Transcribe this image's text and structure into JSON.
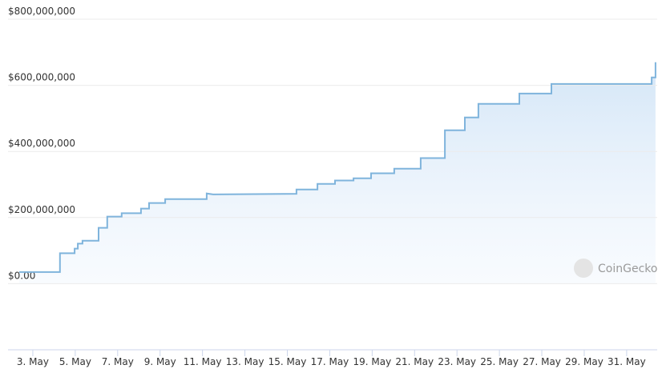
{
  "chart_data": {
    "type": "area",
    "x": [
      2.36,
      4.28,
      4.28,
      4.97,
      4.97,
      5.12,
      5.12,
      5.34,
      5.34,
      6.1,
      6.1,
      6.51,
      6.51,
      7.19,
      7.19,
      8.1,
      8.1,
      8.48,
      8.48,
      9.24,
      9.24,
      11.2,
      11.2,
      11.5,
      15.43,
      15.43,
      16.42,
      16.42,
      17.25,
      17.25,
      18.12,
      18.12,
      18.95,
      18.95,
      20.04,
      20.04,
      21.29,
      21.29,
      22.43,
      22.43,
      23.37,
      23.37,
      24.01,
      24.01,
      25.94,
      25.94,
      27.45,
      27.45,
      32.18,
      32.18,
      32.36,
      32.36
    ],
    "values": [
      35000000,
      35000000,
      92000000,
      92000000,
      106000000,
      106000000,
      121000000,
      121000000,
      130000000,
      130000000,
      169000000,
      169000000,
      203000000,
      203000000,
      213000000,
      213000000,
      227000000,
      227000000,
      244000000,
      244000000,
      256000000,
      256000000,
      273000000,
      270000000,
      272000000,
      285000000,
      285000000,
      302000000,
      302000000,
      312000000,
      312000000,
      319000000,
      319000000,
      334000000,
      334000000,
      348000000,
      348000000,
      380000000,
      380000000,
      464000000,
      464000000,
      503000000,
      503000000,
      544000000,
      544000000,
      575000000,
      575000000,
      604000000,
      604000000,
      624000000,
      624000000,
      670000000
    ],
    "color": "#7fb4dc",
    "xlim": [
      1.83,
      32.44
    ],
    "xticks": [
      {
        "value": 3,
        "label": "3. May"
      },
      {
        "value": 5,
        "label": "5. May"
      },
      {
        "value": 7,
        "label": "7. May"
      },
      {
        "value": 9,
        "label": "9. May"
      },
      {
        "value": 11,
        "label": "11. May"
      },
      {
        "value": 13,
        "label": "13. May"
      },
      {
        "value": 15,
        "label": "15. May"
      },
      {
        "value": 17,
        "label": "17. May"
      },
      {
        "value": 19,
        "label": "19. May"
      },
      {
        "value": 21,
        "label": "21. May"
      },
      {
        "value": 23,
        "label": "23. May"
      },
      {
        "value": 25,
        "label": "25. May"
      },
      {
        "value": 27,
        "label": "27. May"
      },
      {
        "value": 29,
        "label": "29. May"
      },
      {
        "value": 31,
        "label": "31. May"
      }
    ],
    "ylim": [
      -200000000,
      800000000
    ],
    "yticks": [
      {
        "value": 0,
        "label": "$0.00"
      },
      {
        "value": 200000000,
        "label": "$200,000,000"
      },
      {
        "value": 400000000,
        "label": "$400,000,000"
      },
      {
        "value": 600000000,
        "label": "$600,000,000"
      },
      {
        "value": 800000000,
        "label": "$800,000,000"
      }
    ],
    "grid": true,
    "watermark": "CoinGecko"
  }
}
